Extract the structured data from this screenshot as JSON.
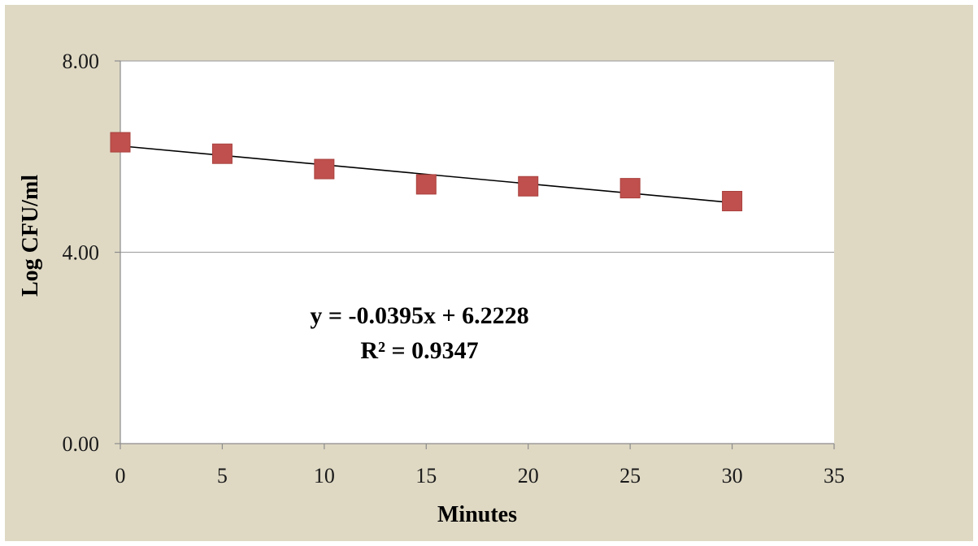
{
  "chart_data": {
    "type": "scatter",
    "title": "",
    "xlabel": "Minutes",
    "ylabel": "Log CFU/ml",
    "xlim": [
      0,
      35
    ],
    "ylim": [
      0,
      8
    ],
    "x_ticks": [
      "0",
      "5",
      "10",
      "15",
      "20",
      "25",
      "30",
      "35"
    ],
    "y_ticks": [
      "0.00",
      "4.00",
      "8.00"
    ],
    "grid": "horizontal",
    "marker_color": "#c0504d",
    "background_color": "#dfd9c4",
    "series": [
      {
        "x": [
          0,
          5,
          10,
          15,
          20,
          25,
          30
        ],
        "y": [
          6.3,
          6.06,
          5.74,
          5.42,
          5.38,
          5.34,
          5.07
        ]
      }
    ],
    "trendline": {
      "type": "linear",
      "slope": -0.0395,
      "intercept": 6.2228,
      "x_range": [
        0,
        30
      ]
    },
    "annotations": {
      "equation": "y = -0.0395x + 6.2228",
      "r_squared": "R² = 0.9347"
    }
  }
}
